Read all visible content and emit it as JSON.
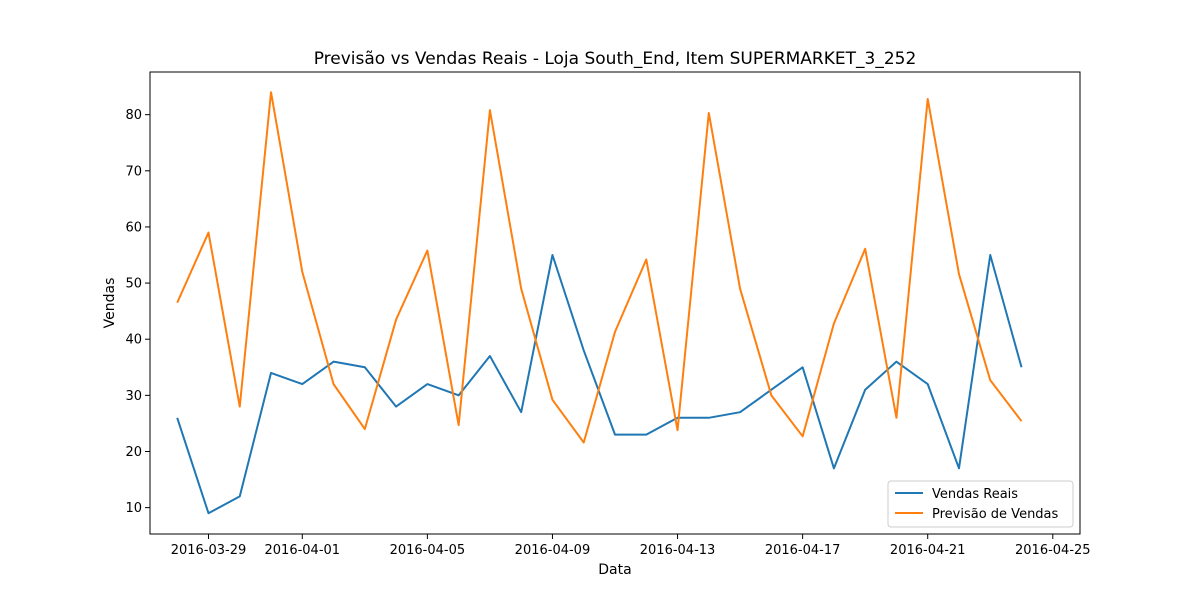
{
  "chart_data": {
    "type": "line",
    "title": "Previsão vs Vendas Reais - Loja South_End, Item SUPERMARKET_3_252",
    "xlabel": "Data",
    "ylabel": "Vendas",
    "x": [
      "2016-03-28",
      "2016-03-29",
      "2016-03-30",
      "2016-03-31",
      "2016-04-01",
      "2016-04-02",
      "2016-04-03",
      "2016-04-04",
      "2016-04-05",
      "2016-04-06",
      "2016-04-07",
      "2016-04-08",
      "2016-04-09",
      "2016-04-10",
      "2016-04-11",
      "2016-04-12",
      "2016-04-13",
      "2016-04-14",
      "2016-04-15",
      "2016-04-16",
      "2016-04-17",
      "2016-04-18",
      "2016-04-19",
      "2016-04-20",
      "2016-04-21",
      "2016-04-22",
      "2016-04-23",
      "2016-04-24"
    ],
    "x_ticks": [
      "2016-03-29",
      "2016-04-01",
      "2016-04-05",
      "2016-04-09",
      "2016-04-13",
      "2016-04-17",
      "2016-04-21",
      "2016-04-25"
    ],
    "y_ticks": [
      10,
      20,
      30,
      40,
      50,
      60,
      70,
      80
    ],
    "xlim": [
      "2016-03-27",
      "2016-04-25"
    ],
    "ylim": [
      5.3,
      87.6
    ],
    "grid": false,
    "legend_position": "lower-right",
    "series": [
      {
        "name": "Vendas Reais",
        "color": "#1f77b4",
        "values": [
          26,
          9,
          12,
          34,
          32,
          36,
          35,
          28,
          32,
          30,
          37,
          27,
          55,
          38,
          23,
          23,
          26,
          26,
          27,
          31,
          35,
          17,
          31,
          36,
          32,
          17,
          55,
          35
        ]
      },
      {
        "name": "Previsão de Vendas",
        "color": "#ff7f0e",
        "values": [
          46.5,
          59,
          28,
          84,
          52,
          32,
          24,
          43.5,
          55.8,
          24.7,
          80.8,
          49,
          29.2,
          21.6,
          41.3,
          54.2,
          23.8,
          80.3,
          49,
          30,
          22.7,
          42.8,
          56.1,
          26,
          82.8,
          51.6,
          32.7,
          25.4
        ]
      }
    ]
  }
}
